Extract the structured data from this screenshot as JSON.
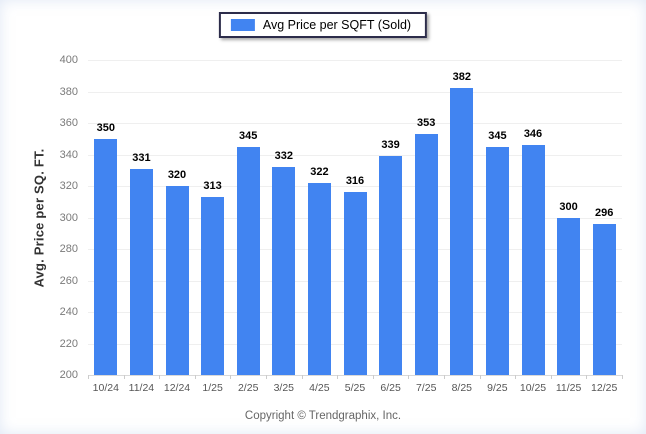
{
  "legend": {
    "label": "Avg Price per SQFT (Sold)"
  },
  "chart_data": {
    "type": "bar",
    "title": "",
    "series_name": "Avg Price per SQFT (Sold)",
    "categories": [
      "10/24",
      "11/24",
      "12/24",
      "1/25",
      "2/25",
      "3/25",
      "4/25",
      "5/25",
      "6/25",
      "7/25",
      "8/25",
      "9/25",
      "10/25",
      "11/25",
      "12/25"
    ],
    "values": [
      350,
      331,
      320,
      313,
      345,
      332,
      322,
      316,
      339,
      353,
      382,
      345,
      346,
      300,
      296
    ],
    "xlabel": "",
    "ylabel": "Avg. Price per SQ. FT.",
    "ylim": [
      200,
      400
    ],
    "ytick_step": 20,
    "grid": "horizontal",
    "legend_position": "top-center",
    "value_labels": true,
    "bar_color": "#4184f1",
    "gridline_color": "#efefef",
    "baseline_color": "#d9d9d9"
  },
  "footer": {
    "copyright": "Copyright © Trendgraphix, Inc."
  }
}
